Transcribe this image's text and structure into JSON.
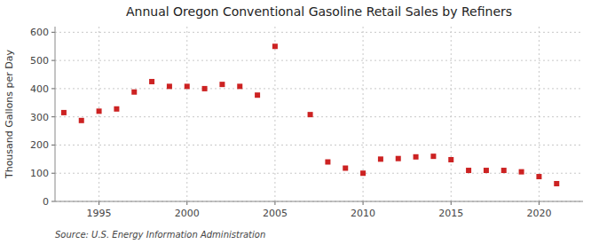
{
  "chart_data": {
    "type": "scatter",
    "title": "Annual Oregon Conventional Gasoline Retail Sales by Refiners",
    "y_label": "Thousand Gallons per Day",
    "source": "Source: U.S. Energy Information Administration",
    "x": [
      1993,
      1994,
      1995,
      1996,
      1997,
      1998,
      1999,
      2000,
      2001,
      2002,
      2003,
      2004,
      2005,
      2007,
      2008,
      2009,
      2010,
      2011,
      2012,
      2013,
      2014,
      2015,
      2016,
      2017,
      2018,
      2019,
      2020,
      2021
    ],
    "values": [
      315,
      287,
      320,
      328,
      388,
      425,
      408,
      408,
      400,
      415,
      408,
      377,
      550,
      308,
      140,
      118,
      100,
      150,
      152,
      158,
      160,
      148,
      110,
      110,
      110,
      105,
      88,
      63
    ],
    "color": "#cc2222",
    "marker": "square",
    "xlim": [
      1992.5,
      2022.5
    ],
    "ylim": [
      0,
      620
    ],
    "xticks": [
      1995,
      2000,
      2005,
      2010,
      2015,
      2020
    ],
    "yticks": [
      0,
      100,
      200,
      300,
      400,
      500,
      600
    ],
    "grid": true
  }
}
